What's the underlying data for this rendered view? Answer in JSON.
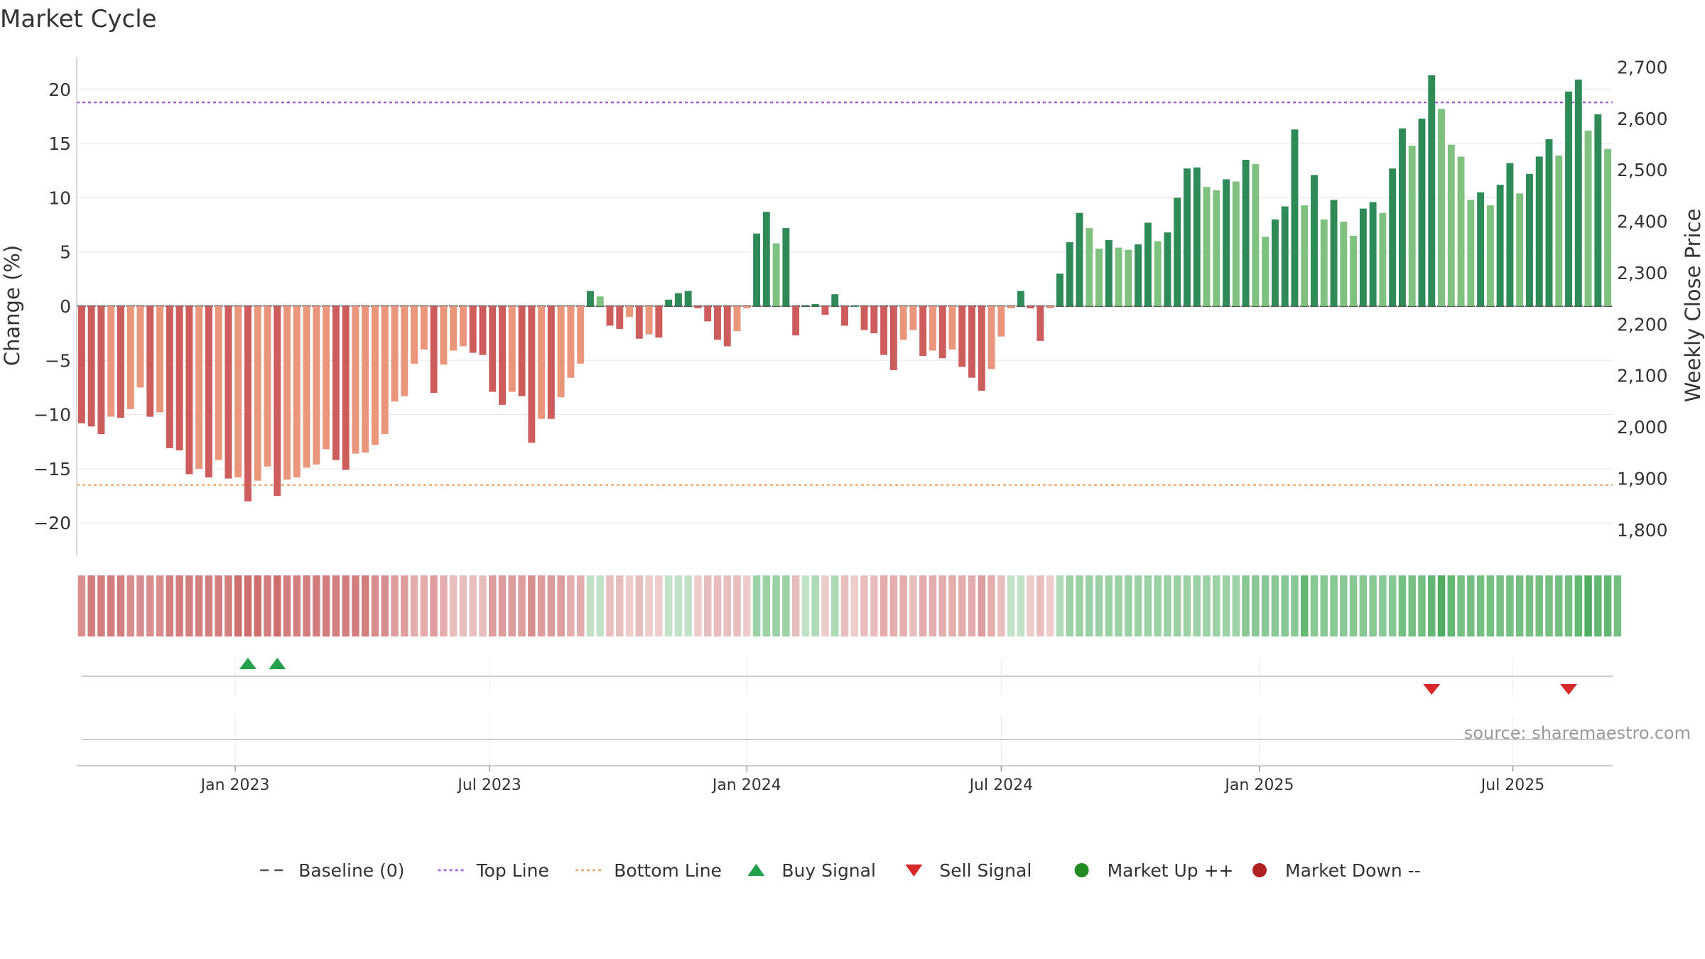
{
  "title": "Market Cycle",
  "source": "source: sharemaestro.com",
  "colors": {
    "gain_strong": "#2e8b57",
    "gain_weak": "#7fc27f",
    "loss_strong": "#cd5c5c",
    "loss_weak": "#e9967a",
    "top_line": "#9b59d6",
    "bottom_line": "#f0a060",
    "buy": "#22a04b",
    "sell": "#d62828",
    "market_up": "#228b22",
    "market_down": "#b22222"
  },
  "chart_data": {
    "type": "bar",
    "title": "Market Cycle",
    "ylabel": "Change (%)",
    "y2label": "Weekly Close Price",
    "ylim": [
      -23,
      23
    ],
    "y_ticks": [
      20,
      15,
      10,
      5,
      0,
      -5,
      -10,
      -15,
      -20
    ],
    "y_tick_labels": [
      "20",
      "15",
      "10",
      "5",
      "0",
      "−5",
      "−10",
      "−15",
      "−20"
    ],
    "y2lim": [
      1750,
      2720
    ],
    "y2_ticks": [
      2700,
      2600,
      2500,
      2400,
      2300,
      2200,
      2100,
      2000,
      1900,
      1800
    ],
    "y2_tick_labels": [
      "2,700",
      "2,600",
      "2,500",
      "2,400",
      "2,300",
      "2,200",
      "2,100",
      "2,000",
      "1,900",
      "1,800"
    ],
    "x_tick_labels": [
      "Jan 2023",
      "Jul 2023",
      "Jan 2024",
      "Jul 2024",
      "Jan 2025",
      "Jul 2025"
    ],
    "x_tick_week_index": [
      16.2,
      42.2,
      68.5,
      94.5,
      120.9,
      146.8
    ],
    "top_line": 18.8,
    "bottom_line": -16.5,
    "baseline": 0,
    "grid": true,
    "values": [
      -10.8,
      -11.1,
      -11.8,
      -10.2,
      -10.3,
      -9.5,
      -7.5,
      -10.2,
      -9.8,
      -13.1,
      -13.3,
      -15.5,
      -15.0,
      -15.8,
      -14.2,
      -15.9,
      -15.8,
      -18.0,
      -16.1,
      -14.8,
      -17.5,
      -16.0,
      -15.8,
      -14.9,
      -14.6,
      -13.2,
      -14.2,
      -15.1,
      -13.6,
      -13.5,
      -12.8,
      -11.8,
      -8.8,
      -8.3,
      -5.3,
      -4.0,
      -8.0,
      -5.4,
      -4.1,
      -3.7,
      -4.3,
      -4.5,
      -7.9,
      -9.1,
      -7.9,
      -8.3,
      -12.6,
      -10.4,
      -10.4,
      -8.4,
      -6.6,
      -5.3,
      1.4,
      0.9,
      -1.8,
      -2.1,
      -1.0,
      -3.0,
      -2.6,
      -2.9,
      0.6,
      1.2,
      1.4,
      -0.2,
      -1.4,
      -3.1,
      -3.7,
      -2.3,
      -0.2,
      6.7,
      8.7,
      5.8,
      7.2,
      -2.7,
      0.1,
      0.2,
      -0.8,
      1.1,
      -1.8,
      0.0,
      -2.2,
      -2.5,
      -4.5,
      -5.9,
      -3.1,
      -2.2,
      -4.6,
      -4.1,
      -4.8,
      -4.0,
      -5.6,
      -6.6,
      -7.8,
      -5.8,
      -2.8,
      -0.2,
      1.4,
      -0.2,
      -3.2,
      -0.2,
      3.0,
      5.9,
      8.6,
      7.2,
      5.3,
      6.1,
      5.4,
      5.2,
      5.7,
      7.7,
      6.0,
      6.8,
      10.0,
      12.7,
      12.8,
      11.0,
      10.7,
      11.7,
      11.5,
      13.5,
      13.1,
      6.4,
      8.0,
      9.2,
      16.3,
      9.3,
      12.1,
      8.0,
      9.8,
      7.8,
      6.5,
      9.0,
      9.6,
      8.6,
      12.7,
      16.4,
      14.8,
      17.3,
      21.3,
      18.2,
      14.9,
      13.8,
      9.8,
      10.5,
      9.3,
      11.2,
      13.2,
      10.4,
      12.2,
      13.8,
      15.4,
      13.9,
      19.8,
      20.9,
      16.2,
      17.7,
      14.5
    ],
    "close_prices": [],
    "signal_strength": [
      5,
      6,
      6,
      6,
      6,
      5,
      5,
      5,
      5,
      6,
      6,
      6,
      6,
      6,
      6,
      6,
      7,
      7,
      7,
      6,
      7,
      6,
      6,
      6,
      6,
      6,
      6,
      6,
      6,
      6,
      5,
      5,
      4,
      4,
      3,
      3,
      4,
      3,
      2,
      2,
      2,
      2,
      4,
      4,
      4,
      4,
      5,
      4,
      4,
      4,
      3,
      3,
      -1,
      -1,
      2,
      2,
      1,
      2,
      1,
      1,
      -1,
      -1,
      -1,
      1,
      2,
      2,
      2,
      2,
      1,
      -3,
      -3,
      -3,
      -3,
      2,
      -1,
      -2,
      1,
      -2,
      2,
      1,
      2,
      2,
      3,
      3,
      3,
      2,
      3,
      3,
      3,
      3,
      3,
      3,
      4,
      3,
      2,
      -1,
      -1,
      1,
      2,
      1,
      -2,
      -3,
      -3,
      -3,
      -3,
      -3,
      -3,
      -3,
      -3,
      -3,
      -3,
      -3,
      -3,
      -3,
      -3,
      -3,
      -3,
      -3,
      -3,
      -4,
      -4,
      -4,
      -4,
      -4,
      -4,
      -6,
      -4,
      -4,
      -4,
      -4,
      -4,
      -4,
      -4,
      -4,
      -4,
      -5,
      -5,
      -5,
      -6,
      -7,
      -6,
      -5,
      -5,
      -5,
      -5,
      -5,
      -5,
      -5,
      -5,
      -5,
      -5,
      -5,
      -5,
      -6,
      -7,
      -6,
      -6,
      -5
    ],
    "buy_signals_week_index": [
      17,
      20
    ],
    "sell_signals_week_index": [
      138,
      152
    ],
    "market_up_week_index": [],
    "market_down_week_index": [],
    "legend": [
      {
        "label": "Baseline (0)",
        "symbol": "dash-line",
        "color": "#555555"
      },
      {
        "label": "Top Line",
        "symbol": "dot-line",
        "color": "#9b59d6"
      },
      {
        "label": "Bottom Line",
        "symbol": "dot-line",
        "color": "#f0a060"
      },
      {
        "label": "Buy Signal",
        "symbol": "triangle-up",
        "color": "#22a04b"
      },
      {
        "label": "Sell Signal",
        "symbol": "triangle-down",
        "color": "#d62828"
      },
      {
        "label": "Market Up ++",
        "symbol": "circle",
        "color": "#228b22"
      },
      {
        "label": "Market Down --",
        "symbol": "circle",
        "color": "#b22222"
      }
    ],
    "legend_position": "bottom-center"
  }
}
